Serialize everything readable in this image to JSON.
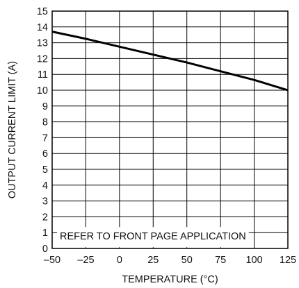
{
  "chart_data": {
    "type": "line",
    "title": "",
    "xlabel": "TEMPERATURE (°C)",
    "ylabel": "OUTPUT CURRENT LIMIT (A)",
    "xlim": [
      -50,
      125
    ],
    "ylim": [
      0,
      15
    ],
    "x_ticks": [
      -50,
      -25,
      0,
      25,
      50,
      75,
      100,
      125
    ],
    "x_tick_labels": [
      "–50",
      "–25",
      "0",
      "25",
      "50",
      "75",
      "100",
      "125"
    ],
    "y_ticks": [
      0,
      1,
      2,
      3,
      4,
      5,
      6,
      7,
      8,
      9,
      10,
      11,
      12,
      13,
      14,
      15
    ],
    "y_tick_labels": [
      "0",
      "1",
      "2",
      "3",
      "4",
      "5",
      "6",
      "7",
      "8",
      "9",
      "10",
      "11",
      "12",
      "13",
      "14",
      "15"
    ],
    "grid": true,
    "annotation": "REFER TO FRONT PAGE APPLICATION",
    "series": [
      {
        "x": [
          -50,
          -25,
          0,
          25,
          50,
          75,
          100,
          125
        ],
        "y": [
          13.7,
          13.25,
          12.75,
          12.25,
          11.75,
          11.2,
          10.65,
          10.0
        ]
      }
    ],
    "colors": {
      "line": "#000000",
      "grid": "#000000",
      "text": "#111111"
    }
  }
}
